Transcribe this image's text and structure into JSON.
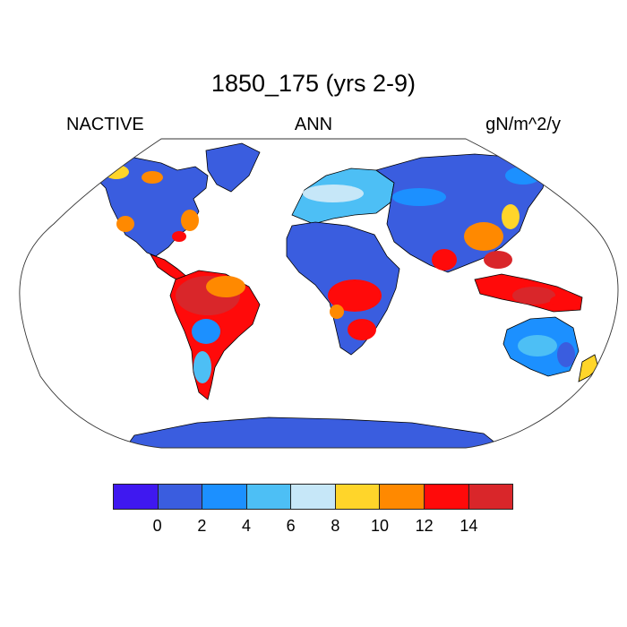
{
  "title": "1850_175 (yrs 2-9)",
  "left_label": "NACTIVE",
  "center_label": "ANN",
  "right_label": "gN/m^2/y",
  "colorbar": {
    "colors": [
      "#3f18f0",
      "#3a5ddf",
      "#1c90ff",
      "#4dbff5",
      "#c6e7f8",
      "#ffd52a",
      "#ff8900",
      "#ff0a0a",
      "#d9262a"
    ],
    "labels": [
      "0",
      "2",
      "4",
      "6",
      "8",
      "10",
      "12",
      "14"
    ]
  },
  "map": {
    "projection": "robinson",
    "ocean_color": "#ffffff",
    "coastline_color": "#000000"
  }
}
